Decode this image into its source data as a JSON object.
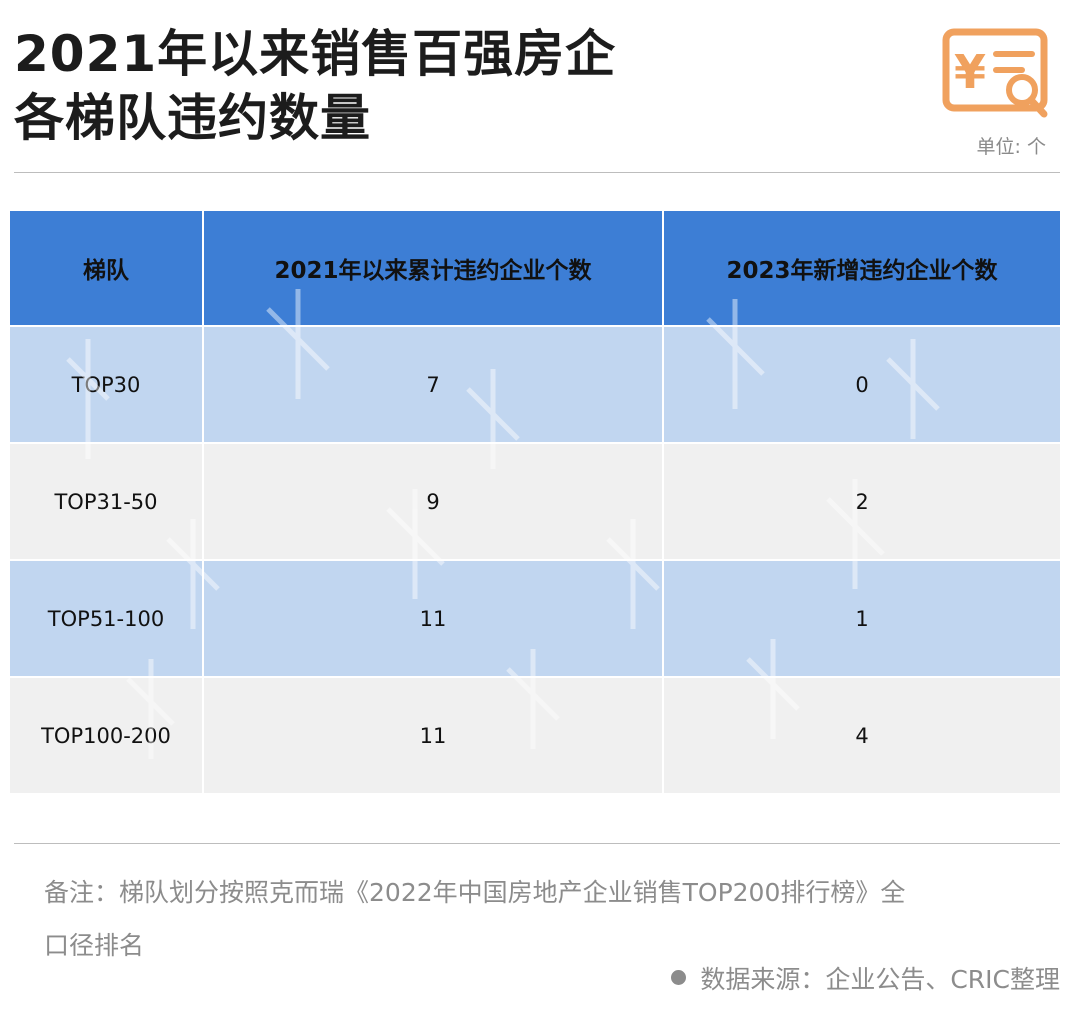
{
  "title": {
    "line1": "2021年以来销售百强房企",
    "line2": "各梯队违约数量"
  },
  "unit": "单位: 个",
  "logo_icon": "yuan-receipt-search-icon",
  "colors": {
    "header": "#3d7ed5",
    "band": "#c1d6f0",
    "plain": "#f0f0f0",
    "logo": "#f0a15e"
  },
  "chart_data": {
    "type": "table",
    "columns": [
      "梯队",
      "2021年以来累计违约企业个数",
      "2023年新增违约企业个数"
    ],
    "rows": [
      [
        "TOP30",
        "7",
        "0"
      ],
      [
        "TOP31-50",
        "9",
        "2"
      ],
      [
        "TOP51-100",
        "11",
        "1"
      ],
      [
        "TOP100-200",
        "11",
        "4"
      ]
    ]
  },
  "note": "备注：梯队划分按照克而瑞《2022年中国房地产企业销售TOP200排行榜》全口径排名",
  "source": "数据来源：企业公告、CRIC整理"
}
